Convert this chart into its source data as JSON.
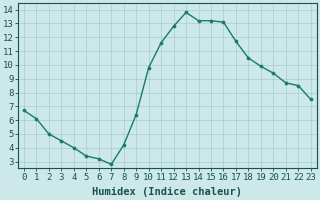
{
  "x": [
    0,
    1,
    2,
    3,
    4,
    5,
    6,
    7,
    8,
    9,
    10,
    11,
    12,
    13,
    14,
    15,
    16,
    17,
    18,
    19,
    20,
    21,
    22,
    23
  ],
  "y": [
    6.7,
    6.1,
    5.0,
    4.5,
    4.0,
    3.4,
    3.2,
    2.8,
    4.2,
    6.4,
    9.8,
    11.6,
    12.8,
    13.8,
    13.2,
    13.2,
    13.1,
    11.7,
    10.5,
    9.9,
    9.4,
    8.7,
    8.5,
    7.5
  ],
  "line_color": "#1a7a6e",
  "marker": "o",
  "marker_size": 2.2,
  "linewidth": 1.0,
  "bg_color": "#cce8e8",
  "grid_color": "#aacccc",
  "xlabel": "Humidex (Indice chaleur)",
  "xlim": [
    -0.5,
    23.5
  ],
  "ylim": [
    2.5,
    14.5
  ],
  "yticks": [
    3,
    4,
    5,
    6,
    7,
    8,
    9,
    10,
    11,
    12,
    13,
    14
  ],
  "xticks": [
    0,
    1,
    2,
    3,
    4,
    5,
    6,
    7,
    8,
    9,
    10,
    11,
    12,
    13,
    14,
    15,
    16,
    17,
    18,
    19,
    20,
    21,
    22,
    23
  ],
  "xlabel_fontsize": 7.5,
  "tick_fontsize": 6.5,
  "tick_color": "#1a5050",
  "axis_color": "#1a5050",
  "spine_color": "#1a5050"
}
